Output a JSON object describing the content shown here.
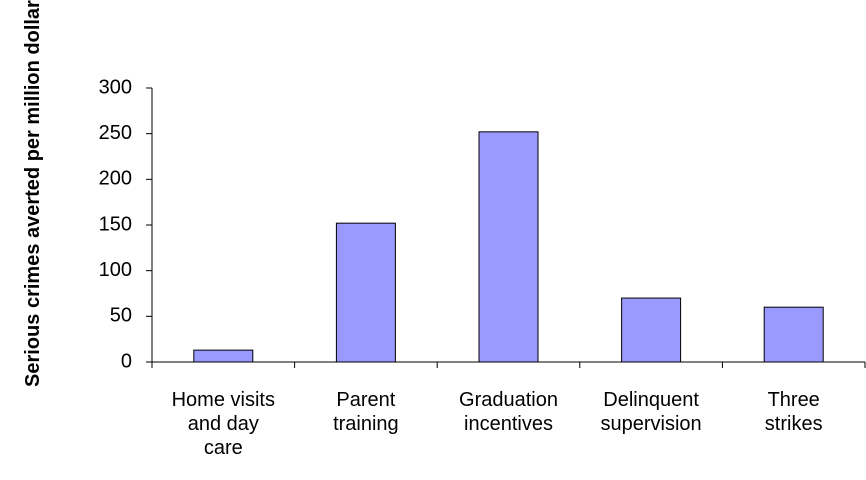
{
  "chart_data": {
    "type": "bar",
    "y_axis_label": "Serious crimes averted per million dollars",
    "categories": [
      "Home visits and day care",
      "Parent training",
      "Graduation incentives",
      "Delinquent supervision",
      "Three strikes"
    ],
    "values": [
      13,
      152,
      252,
      70,
      60
    ],
    "color": "#9999ff",
    "ylim": [
      0,
      300
    ],
    "yticks": [
      0,
      50,
      100,
      150,
      200,
      250,
      300
    ],
    "grid": false
  }
}
